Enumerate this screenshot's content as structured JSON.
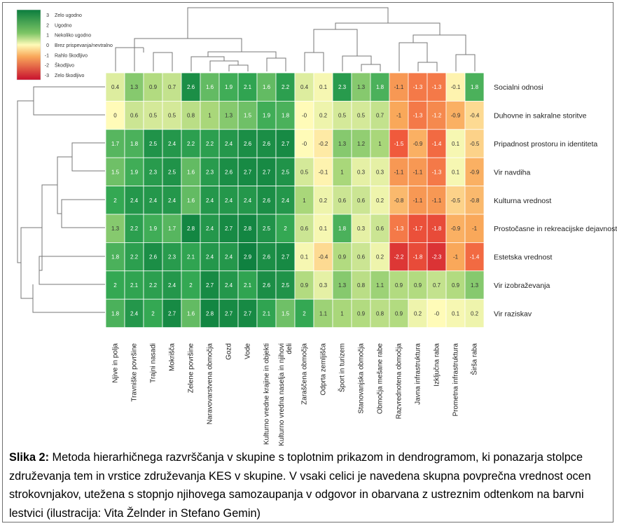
{
  "chart_data": {
    "type": "heatmap",
    "columns": [
      "Njive in polja",
      "Travniške površine",
      "Trajni nasadi",
      "Mokrišča",
      "Zelene površine",
      "Naravovarstvena območja",
      "Gozd",
      "Vode",
      "Kulturno vredne krajine in objekti",
      "Kulturno vredna naselja in njihovi deli",
      "Zaraščena območja",
      "Odprta zemljišča",
      "Šport in turizem",
      "Stanovanjska območja",
      "Območja mešane rabe",
      "Razvrednotena območja",
      "Javna infrastruktura",
      "Izključna raba",
      "Prometna infrastruktura",
      "Širša raba"
    ],
    "rows": [
      "Socialni odnosi",
      "Duhovne in sakralne storitve",
      "Pripadnost prostoru in identiteta",
      "Vir navdiha",
      "Kulturna vrednost",
      "Prostočasne in rekreacijske dejavnosti",
      "Estetska vrednost",
      "Vir izobraževanja",
      "Vir raziskav"
    ],
    "cell_labels": [
      [
        "0.4",
        "1.3",
        "0.9",
        "0.7",
        "2.6",
        "1.6",
        "1.9",
        "2.1",
        "1.6",
        "2.2",
        "0.4",
        "0.1",
        "2.3",
        "1.3",
        "1.8",
        "-1.1",
        "-1.3",
        "-1.3",
        "-0.1",
        "1.8"
      ],
      [
        "0",
        "0.6",
        "0.5",
        "0.5",
        "0.8",
        "1",
        "1.3",
        "1.5",
        "1.9",
        "1.8",
        "-0",
        "0.2",
        "0.5",
        "0.5",
        "0.7",
        "-1",
        "-1.3",
        "-1.2",
        "-0.9",
        "-0.4"
      ],
      [
        "1.7",
        "1.8",
        "2.5",
        "2.4",
        "2.2",
        "2.2",
        "2.4",
        "2.6",
        "2.6",
        "2.7",
        "-0",
        "-0.2",
        "1.3",
        "1.2",
        "1",
        "-1.5",
        "-0.9",
        "-1.4",
        "0.1",
        "-0.5"
      ],
      [
        "1.5",
        "1.9",
        "2.3",
        "2.5",
        "1.6",
        "2.3",
        "2.6",
        "2.7",
        "2.7",
        "2.5",
        "0.5",
        "-0.1",
        "1",
        "0.3",
        "0.3",
        "-1.1",
        "-1.1",
        "-1.3",
        "0.1",
        "-0.9"
      ],
      [
        "2",
        "2.4",
        "2.4",
        "2.4",
        "1.6",
        "2.4",
        "2.4",
        "2.4",
        "2.6",
        "2.4",
        "1",
        "0.2",
        "0.6",
        "0.6",
        "0.2",
        "-0.8",
        "-1.1",
        "-1.1",
        "-0.5",
        "-0.8"
      ],
      [
        "1.3",
        "2.2",
        "1.9",
        "1.7",
        "2.8",
        "2.4",
        "2.7",
        "2.8",
        "2.5",
        "2",
        "0.6",
        "0.1",
        "1.8",
        "0.3",
        "0.6",
        "-1.3",
        "-1.7",
        "-1.8",
        "-0.9",
        "-1"
      ],
      [
        "1.8",
        "2.2",
        "2.6",
        "2.3",
        "2.1",
        "2.4",
        "2.4",
        "2.9",
        "2.6",
        "2.7",
        "0.1",
        "-0.4",
        "0.9",
        "0.6",
        "0.2",
        "-2.2",
        "-1.8",
        "-2.3",
        "-1",
        "-1.4"
      ],
      [
        "2",
        "2.1",
        "2.2",
        "2.4",
        "2",
        "2.7",
        "2.4",
        "2.1",
        "2.6",
        "2.5",
        "0.9",
        "0.3",
        "1.3",
        "0.8",
        "1.1",
        "0.9",
        "0.9",
        "0.7",
        "0.9",
        "1.3"
      ],
      [
        "1.8",
        "2.4",
        "2",
        "2.7",
        "1.6",
        "2.8",
        "2.7",
        "2.7",
        "2.1",
        "1.5",
        "2",
        "1.1",
        "1",
        "0.9",
        "0.8",
        "0.9",
        "0.2",
        "-0",
        "0.1",
        "0.2"
      ]
    ],
    "legend": [
      {
        "value": "3",
        "label": "Zelo ugodno"
      },
      {
        "value": "2",
        "label": "Ugodno"
      },
      {
        "value": "1",
        "label": "Nekoliko ugodno"
      },
      {
        "value": "0",
        "label": "Brez prispevanja/nevtralno"
      },
      {
        "value": "-1",
        "label": "Rahlo škodljivo"
      },
      {
        "value": "-2",
        "label": "Škodljivo"
      },
      {
        "value": "-3",
        "label": "Zelo škodljivo"
      }
    ],
    "value_range": [
      -3,
      3
    ],
    "colors": {
      "low": "#c8102e",
      "mid": "#fffbb8",
      "high": "#0b7d3e"
    },
    "legend_position": "top-left",
    "column_dendrogram": "top",
    "row_dendrogram": "left",
    "grid": false
  },
  "caption": {
    "label": "Slika 2:",
    "text": " Metoda hierarhičnega razvrščanja v skupine s toplotnim prikazom in dendrogramom, ki ponazarja stolpce združevanja tem in vrstice združevanja KES v skupine. V vsaki celici je navedena skupna povprečna vrednost ocen strokovnjakov, utežena s stopnjo njihovega samozaupanja v odgovor in obarvana z ustreznim odtenkom na barvni lestvici (ilustracija: Vita Želnder in Stefano Gemin)"
  }
}
